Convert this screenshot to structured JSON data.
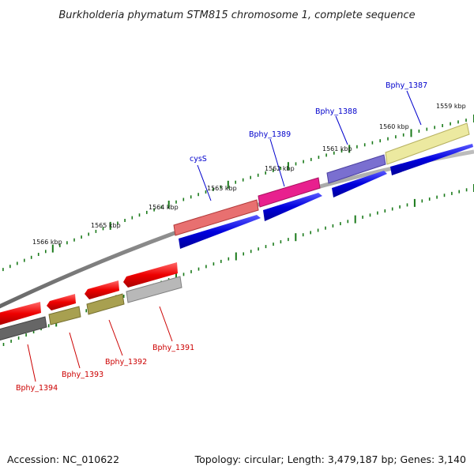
{
  "title": "Burkholderia phymatum STM815 chromosome 1, complete sequence",
  "footer": {
    "accession": "Accession: NC_010622",
    "summary": "Topology: circular; Length: 3,479,187 bp; Genes: 3,140"
  },
  "ticks": {
    "major_labels": [
      "1559 kbp",
      "1560 kbp",
      "1561 kbp",
      "1562 kbp",
      "1563 kbp",
      "1564 kbp",
      "1565 kbp",
      "1566 kbp"
    ],
    "color": "#1a7a1a"
  },
  "genes_forward": [
    {
      "name": "Bphy_1387",
      "color": "#ece9a0"
    },
    {
      "name": "Bphy_1388",
      "color": "#7a6fd0"
    },
    {
      "name": "Bphy_1389",
      "color": "#e8208e"
    },
    {
      "name": "cysS",
      "color": "#e87070"
    }
  ],
  "genes_reverse": [
    {
      "name": "Bphy_1391",
      "color": "#b8b8b8"
    },
    {
      "name": "Bphy_1392",
      "color": "#a8a050"
    },
    {
      "name": "Bphy_1393",
      "color": "#a8a050"
    },
    {
      "name": "Bphy_1394",
      "color": "#666666"
    }
  ],
  "colors": {
    "cds_forward": "#0000dd",
    "cds_reverse": "#ee0000",
    "backbone": "#888888",
    "label_forward": "#0000cc",
    "label_reverse": "#cc0000"
  }
}
